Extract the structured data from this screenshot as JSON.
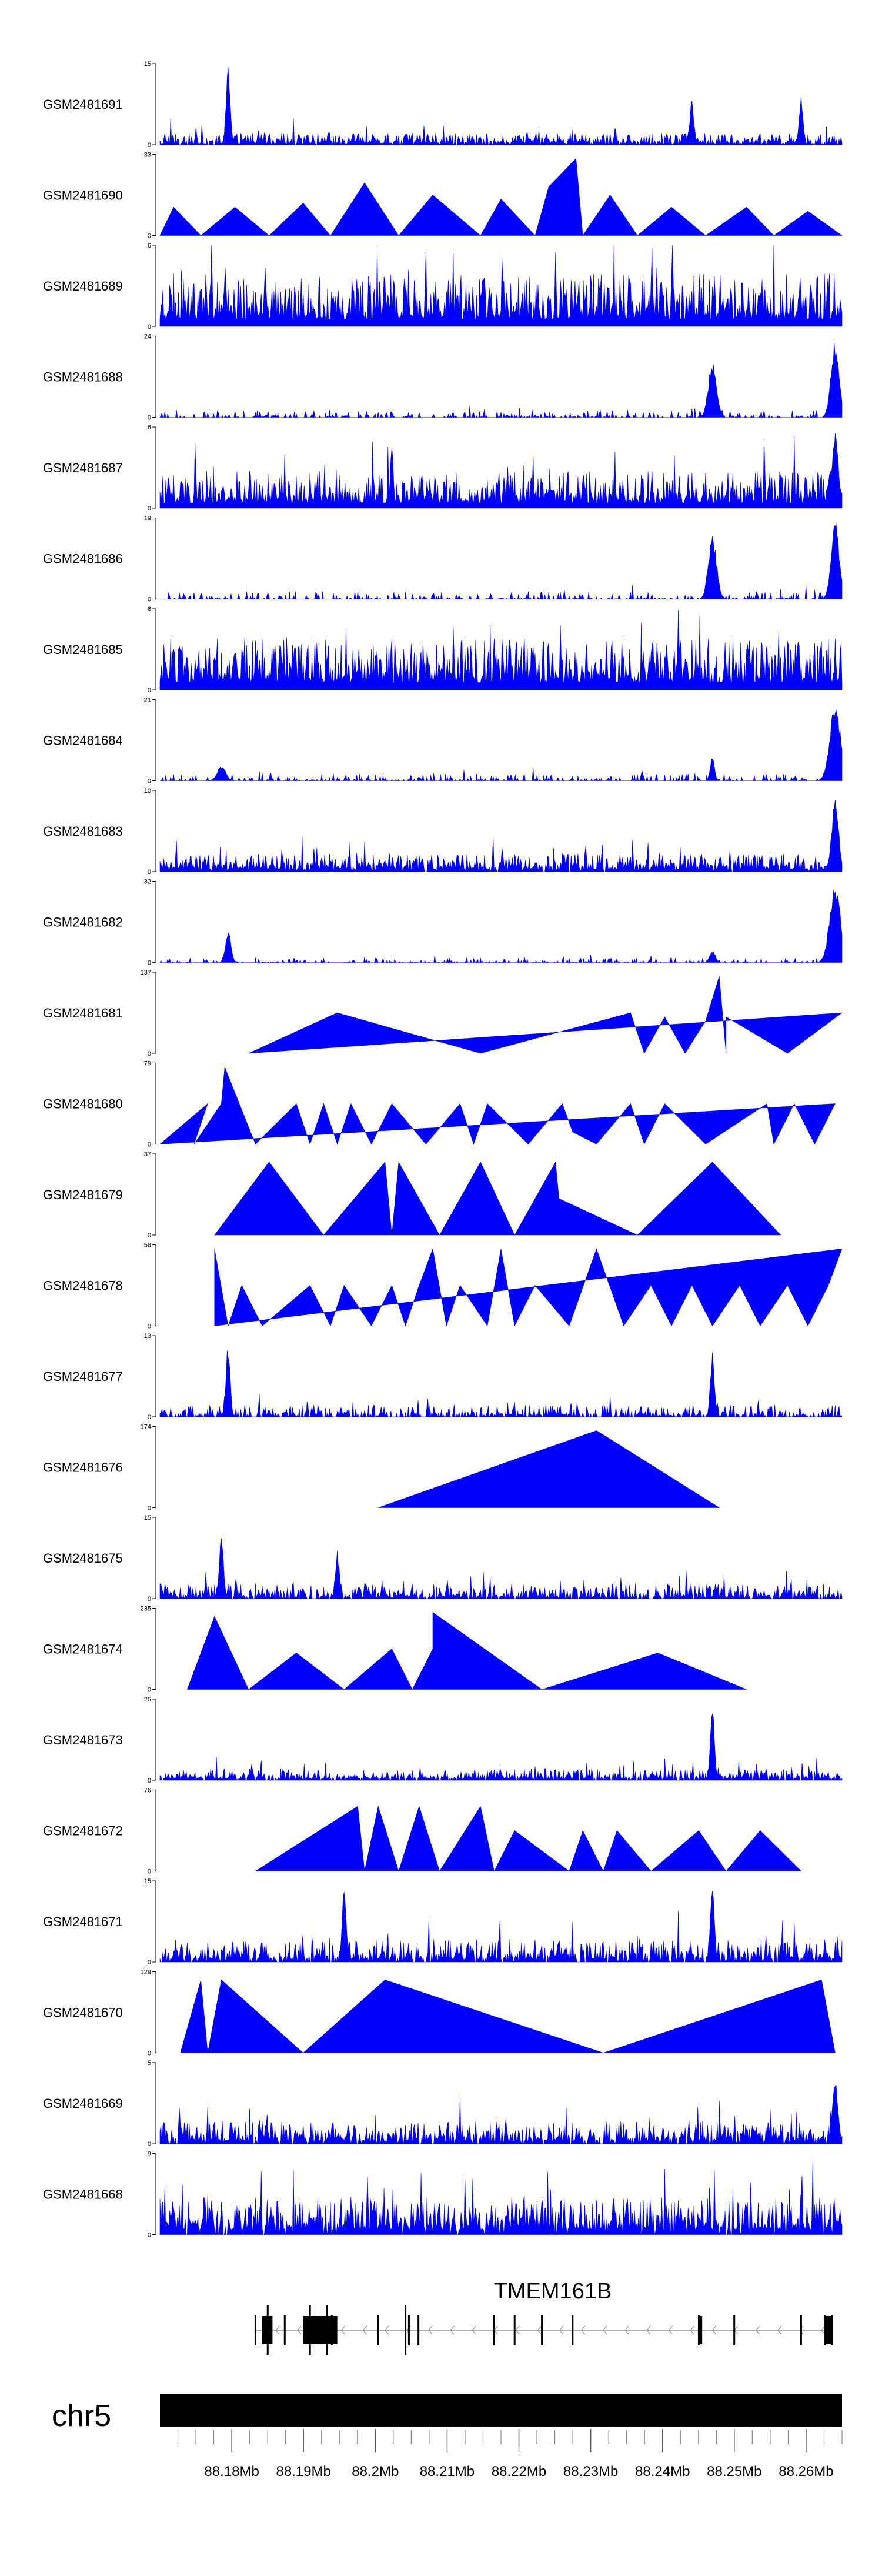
{
  "chart_data": {
    "type": "area",
    "title": "",
    "color": "#0000ff",
    "xlabel": "",
    "chromosome": "chr5",
    "x_range_mb": [
      88.17,
      88.265
    ],
    "x_ticks": [
      {
        "mb": 88.18,
        "label": "88.18Mb"
      },
      {
        "mb": 88.19,
        "label": "88.19Mb"
      },
      {
        "mb": 88.2,
        "label": "88.2Mb"
      },
      {
        "mb": 88.21,
        "label": "88.21Mb"
      },
      {
        "mb": 88.22,
        "label": "88.22Mb"
      },
      {
        "mb": 88.23,
        "label": "88.23Mb"
      },
      {
        "mb": 88.24,
        "label": "88.24Mb"
      },
      {
        "mb": 88.25,
        "label": "88.25Mb"
      },
      {
        "mb": 88.26,
        "label": "88.26Mb"
      }
    ],
    "series": [
      {
        "name": "GSM2481691",
        "ymax": 15,
        "yticks": [
          "15",
          "0"
        ],
        "kind": "dense",
        "density": 0.85,
        "base": 0.08,
        "peaks": [
          [
            0.1,
            1.0,
            0.003
          ],
          [
            0.78,
            0.55,
            0.003
          ],
          [
            0.94,
            0.6,
            0.003
          ]
        ]
      },
      {
        "name": "GSM2481690",
        "ymax": 33,
        "yticks": [
          "33",
          "0"
        ],
        "kind": "sparse",
        "points": [
          [
            0.0,
            0
          ],
          [
            0.02,
            0.35
          ],
          [
            0.06,
            0
          ],
          [
            0.11,
            0.35
          ],
          [
            0.16,
            0
          ],
          [
            0.21,
            0.4
          ],
          [
            0.25,
            0
          ],
          [
            0.3,
            0.65
          ],
          [
            0.35,
            0
          ],
          [
            0.4,
            0.5
          ],
          [
            0.47,
            0
          ],
          [
            0.5,
            0.45
          ],
          [
            0.55,
            0
          ],
          [
            0.57,
            0.6
          ],
          [
            0.61,
            0.95
          ],
          [
            0.62,
            0
          ],
          [
            0.66,
            0.5
          ],
          [
            0.7,
            0
          ],
          [
            0.75,
            0.35
          ],
          [
            0.8,
            0
          ],
          [
            0.86,
            0.35
          ],
          [
            0.9,
            0
          ],
          [
            0.95,
            0.3
          ],
          [
            1.0,
            0
          ]
        ]
      },
      {
        "name": "GSM2481689",
        "ymax": 6,
        "yticks": [
          "6",
          "0"
        ],
        "kind": "dense",
        "density": 1.0,
        "base": 0.35,
        "peaks": []
      },
      {
        "name": "GSM2481688",
        "ymax": 24,
        "yticks": [
          "24",
          "0"
        ],
        "kind": "dense",
        "density": 0.35,
        "base": 0.05,
        "peaks": [
          [
            0.81,
            0.7,
            0.006
          ],
          [
            0.99,
            0.95,
            0.006
          ]
        ]
      },
      {
        "name": "GSM2481687",
        "ymax": 6,
        "yticks": [
          "6",
          "0"
        ],
        "kind": "dense",
        "density": 1.0,
        "base": 0.25,
        "peaks": [
          [
            0.34,
            0.95,
            0.002
          ],
          [
            0.99,
            0.95,
            0.005
          ]
        ]
      },
      {
        "name": "GSM2481686",
        "ymax": 19,
        "yticks": [
          "19",
          "0"
        ],
        "kind": "dense",
        "density": 0.35,
        "base": 0.05,
        "peaks": [
          [
            0.81,
            0.8,
            0.006
          ],
          [
            0.99,
            0.95,
            0.006
          ]
        ]
      },
      {
        "name": "GSM2481685",
        "ymax": 6,
        "yticks": [
          "6",
          "0"
        ],
        "kind": "dense",
        "density": 1.0,
        "base": 0.35,
        "peaks": []
      },
      {
        "name": "GSM2481684",
        "ymax": 21,
        "yticks": [
          "21",
          "0"
        ],
        "kind": "dense",
        "density": 0.35,
        "base": 0.05,
        "peaks": [
          [
            0.09,
            0.2,
            0.006
          ],
          [
            0.81,
            0.35,
            0.003
          ],
          [
            0.99,
            0.95,
            0.008
          ]
        ]
      },
      {
        "name": "GSM2481683",
        "ymax": 10,
        "yticks": [
          "10",
          "0"
        ],
        "kind": "dense",
        "density": 0.9,
        "base": 0.12,
        "peaks": [
          [
            0.99,
            0.95,
            0.005
          ]
        ]
      },
      {
        "name": "GSM2481682",
        "ymax": 32,
        "yticks": [
          "32",
          "0"
        ],
        "kind": "dense",
        "density": 0.3,
        "base": 0.03,
        "peaks": [
          [
            0.1,
            0.4,
            0.004
          ],
          [
            0.81,
            0.15,
            0.004
          ],
          [
            0.99,
            0.95,
            0.008
          ]
        ]
      },
      {
        "name": "GSM2481681",
        "ymax": 137,
        "yticks": [
          "137",
          "0"
        ],
        "kind": "sparse",
        "points": [
          [
            0.13,
            0
          ],
          [
            0.26,
            0.5
          ],
          [
            0.47,
            0
          ],
          [
            0.69,
            0.5
          ],
          [
            0.71,
            0
          ],
          [
            0.74,
            0.45
          ],
          [
            0.77,
            0
          ],
          [
            0.8,
            0.4
          ],
          [
            0.82,
            0.95
          ],
          [
            0.83,
            0
          ],
          [
            0.83,
            0.45
          ],
          [
            0.92,
            0
          ],
          [
            1.0,
            0.5
          ]
        ]
      },
      {
        "name": "GSM2481680",
        "ymax": 79,
        "yticks": [
          "79",
          "0"
        ],
        "kind": "sparse",
        "points": [
          [
            0.0,
            0
          ],
          [
            0.07,
            0.5
          ],
          [
            0.05,
            0
          ],
          [
            0.09,
            0.5
          ],
          [
            0.095,
            0.95
          ],
          [
            0.14,
            0
          ],
          [
            0.2,
            0.5
          ],
          [
            0.22,
            0
          ],
          [
            0.24,
            0.5
          ],
          [
            0.26,
            0
          ],
          [
            0.28,
            0.5
          ],
          [
            0.31,
            0
          ],
          [
            0.34,
            0.5
          ],
          [
            0.39,
            0
          ],
          [
            0.44,
            0.5
          ],
          [
            0.46,
            0
          ],
          [
            0.48,
            0.5
          ],
          [
            0.54,
            0
          ],
          [
            0.59,
            0.5
          ],
          [
            0.605,
            0.15
          ],
          [
            0.64,
            0
          ],
          [
            0.69,
            0.5
          ],
          [
            0.71,
            0
          ],
          [
            0.74,
            0.5
          ],
          [
            0.8,
            0
          ],
          [
            0.89,
            0.5
          ],
          [
            0.9,
            0
          ],
          [
            0.93,
            0.5
          ],
          [
            0.96,
            0
          ],
          [
            0.99,
            0.5
          ]
        ]
      },
      {
        "name": "GSM2481679",
        "ymax": 37,
        "yticks": [
          "37",
          "0"
        ],
        "kind": "sparse",
        "points": [
          [
            0.08,
            0
          ],
          [
            0.16,
            0.9
          ],
          [
            0.24,
            0
          ],
          [
            0.33,
            0.9
          ],
          [
            0.34,
            0
          ],
          [
            0.35,
            0.9
          ],
          [
            0.41,
            0
          ],
          [
            0.47,
            0.9
          ],
          [
            0.52,
            0
          ],
          [
            0.58,
            0.9
          ],
          [
            0.585,
            0.45
          ],
          [
            0.7,
            0
          ],
          [
            0.81,
            0.9
          ],
          [
            0.91,
            0
          ]
        ]
      },
      {
        "name": "GSM2481678",
        "ymax": 58,
        "yticks": [
          "58",
          "0"
        ],
        "kind": "sparse",
        "points": [
          [
            0.08,
            0
          ],
          [
            0.08,
            0.95
          ],
          [
            0.1,
            0
          ],
          [
            0.12,
            0.5
          ],
          [
            0.15,
            0
          ],
          [
            0.22,
            0.5
          ],
          [
            0.25,
            0
          ],
          [
            0.27,
            0.5
          ],
          [
            0.31,
            0
          ],
          [
            0.34,
            0.5
          ],
          [
            0.36,
            0
          ],
          [
            0.38,
            0.5
          ],
          [
            0.4,
            0.95
          ],
          [
            0.42,
            0
          ],
          [
            0.44,
            0.5
          ],
          [
            0.48,
            0
          ],
          [
            0.5,
            0.95
          ],
          [
            0.52,
            0
          ],
          [
            0.55,
            0.5
          ],
          [
            0.6,
            0
          ],
          [
            0.64,
            0.95
          ],
          [
            0.68,
            0
          ],
          [
            0.72,
            0.5
          ],
          [
            0.75,
            0
          ],
          [
            0.78,
            0.5
          ],
          [
            0.81,
            0
          ],
          [
            0.85,
            0.5
          ],
          [
            0.88,
            0
          ],
          [
            0.92,
            0.5
          ],
          [
            0.95,
            0
          ],
          [
            0.98,
            0.5
          ],
          [
            1.0,
            0.95
          ]
        ]
      },
      {
        "name": "GSM2481677",
        "ymax": 13,
        "yticks": [
          "13",
          "0"
        ],
        "kind": "dense",
        "density": 0.6,
        "base": 0.08,
        "peaks": [
          [
            0.1,
            0.95,
            0.003
          ],
          [
            0.81,
            0.8,
            0.003
          ]
        ]
      },
      {
        "name": "GSM2481676",
        "ymax": 174,
        "yticks": [
          "174",
          "0"
        ],
        "kind": "sparse",
        "points": [
          [
            0.32,
            0
          ],
          [
            0.64,
            0.95
          ],
          [
            0.82,
            0
          ]
        ]
      },
      {
        "name": "GSM2481675",
        "ymax": 15,
        "yticks": [
          "15",
          "0"
        ],
        "kind": "dense",
        "density": 0.8,
        "base": 0.1,
        "peaks": [
          [
            0.09,
            0.9,
            0.003
          ],
          [
            0.26,
            0.6,
            0.003
          ]
        ]
      },
      {
        "name": "GSM2481674",
        "ymax": 235,
        "yticks": [
          "235",
          "0"
        ],
        "kind": "sparse",
        "points": [
          [
            0.04,
            0
          ],
          [
            0.08,
            0.9
          ],
          [
            0.13,
            0
          ],
          [
            0.2,
            0.45
          ],
          [
            0.27,
            0
          ],
          [
            0.34,
            0.5
          ],
          [
            0.37,
            0
          ],
          [
            0.4,
            0.5
          ],
          [
            0.4,
            0.95
          ],
          [
            0.56,
            0
          ],
          [
            0.73,
            0.45
          ],
          [
            0.86,
            0
          ]
        ]
      },
      {
        "name": "GSM2481673",
        "ymax": 25,
        "yticks": [
          "25",
          "0"
        ],
        "kind": "dense",
        "density": 0.8,
        "base": 0.08,
        "peaks": [
          [
            0.81,
            0.9,
            0.003
          ]
        ]
      },
      {
        "name": "GSM2481672",
        "ymax": 76,
        "yticks": [
          "76",
          "0"
        ],
        "kind": "sparse",
        "points": [
          [
            0.14,
            0
          ],
          [
            0.29,
            0.8
          ],
          [
            0.3,
            0
          ],
          [
            0.32,
            0.8
          ],
          [
            0.35,
            0
          ],
          [
            0.38,
            0.8
          ],
          [
            0.41,
            0
          ],
          [
            0.47,
            0.8
          ],
          [
            0.49,
            0
          ],
          [
            0.52,
            0.5
          ],
          [
            0.6,
            0
          ],
          [
            0.62,
            0.5
          ],
          [
            0.65,
            0
          ],
          [
            0.67,
            0.5
          ],
          [
            0.72,
            0
          ],
          [
            0.79,
            0.5
          ],
          [
            0.83,
            0
          ],
          [
            0.88,
            0.5
          ],
          [
            0.94,
            0
          ]
        ]
      },
      {
        "name": "GSM2481671",
        "ymax": 15,
        "yticks": [
          "15",
          "0"
        ],
        "kind": "dense",
        "density": 0.8,
        "base": 0.15,
        "peaks": [
          [
            0.27,
            0.9,
            0.003
          ],
          [
            0.81,
            0.95,
            0.003
          ]
        ]
      },
      {
        "name": "GSM2481670",
        "ymax": 129,
        "yticks": [
          "129",
          "0"
        ],
        "kind": "sparse",
        "points": [
          [
            0.03,
            0
          ],
          [
            0.06,
            0.9
          ],
          [
            0.07,
            0
          ],
          [
            0.09,
            0.9
          ],
          [
            0.21,
            0
          ],
          [
            0.33,
            0.9
          ],
          [
            0.65,
            0
          ],
          [
            0.97,
            0.9
          ],
          [
            0.99,
            0
          ]
        ]
      },
      {
        "name": "GSM2481669",
        "ymax": 5,
        "yticks": [
          "5",
          "0"
        ],
        "kind": "dense",
        "density": 0.85,
        "base": 0.15,
        "peaks": [
          [
            0.99,
            0.9,
            0.004
          ]
        ]
      },
      {
        "name": "GSM2481668",
        "ymax": 9,
        "yticks": [
          "9",
          "0"
        ],
        "kind": "dense",
        "density": 0.9,
        "base": 0.25,
        "peaks": []
      }
    ],
    "gene": {
      "name": "TMEM161B",
      "strand": "-",
      "exons_tall": [
        0.158,
        0.22,
        0.245,
        0.36
      ],
      "exons_short": [
        0.14,
        0.183,
        0.252,
        0.32,
        0.365,
        0.379,
        0.49,
        0.52,
        0.56,
        0.605,
        0.79,
        0.842,
        0.94,
        0.975,
        0.985
      ],
      "exons_thick": [
        [
          0.15,
          0.165
        ],
        [
          0.21,
          0.26
        ],
        [
          0.79,
          0.795
        ],
        [
          0.975,
          0.985
        ]
      ]
    }
  }
}
